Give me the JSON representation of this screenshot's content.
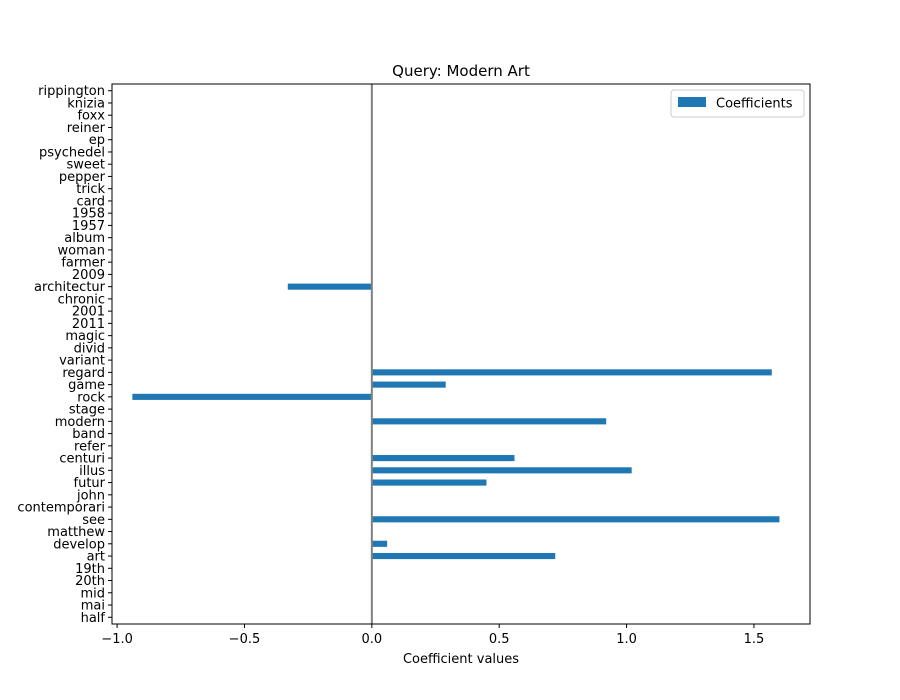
{
  "chart_data": {
    "type": "bar",
    "orientation": "horizontal",
    "title": "Query: Modern Art",
    "xlabel": "Coefficient values",
    "ylabel": "",
    "xlim": [
      -1.02,
      1.72
    ],
    "x_ticks": [
      -1.0,
      -0.5,
      0.0,
      0.5,
      1.0,
      1.5
    ],
    "x_tick_labels": [
      "−1.0",
      "−0.5",
      "0.0",
      "0.5",
      "1.0",
      "1.5"
    ],
    "zero_line": true,
    "grid": false,
    "legend_position": "top-right",
    "bar_color": "#1f77b4",
    "zero_line_color": "#808080",
    "categories": [
      "half",
      "mai",
      "mid",
      "20th",
      "19th",
      "art",
      "develop",
      "matthew",
      "see",
      "contemporari",
      "john",
      "futur",
      "illus",
      "centuri",
      "refer",
      "band",
      "modern",
      "stage",
      "rock",
      "game",
      "regard",
      "variant",
      "divid",
      "magic",
      "2011",
      "2001",
      "chronic",
      "architectur",
      "2009",
      "farmer",
      "woman",
      "album",
      "1957",
      "1958",
      "card",
      "trick",
      "pepper",
      "sweet",
      "psychedel",
      "ep",
      "reiner",
      "foxx",
      "knizia",
      "rippington"
    ],
    "series": [
      {
        "name": "Coefficients",
        "values": [
          0,
          0,
          0,
          0,
          0,
          0.72,
          0.06,
          0,
          1.6,
          0,
          0,
          0.45,
          1.02,
          0.56,
          0,
          0,
          0.92,
          0,
          -0.94,
          0.29,
          1.57,
          0,
          0,
          0,
          0,
          0,
          0,
          -0.33,
          0,
          0,
          0,
          0,
          0,
          0,
          0,
          0,
          0,
          0,
          0,
          0,
          0,
          0,
          0,
          0
        ]
      }
    ]
  }
}
